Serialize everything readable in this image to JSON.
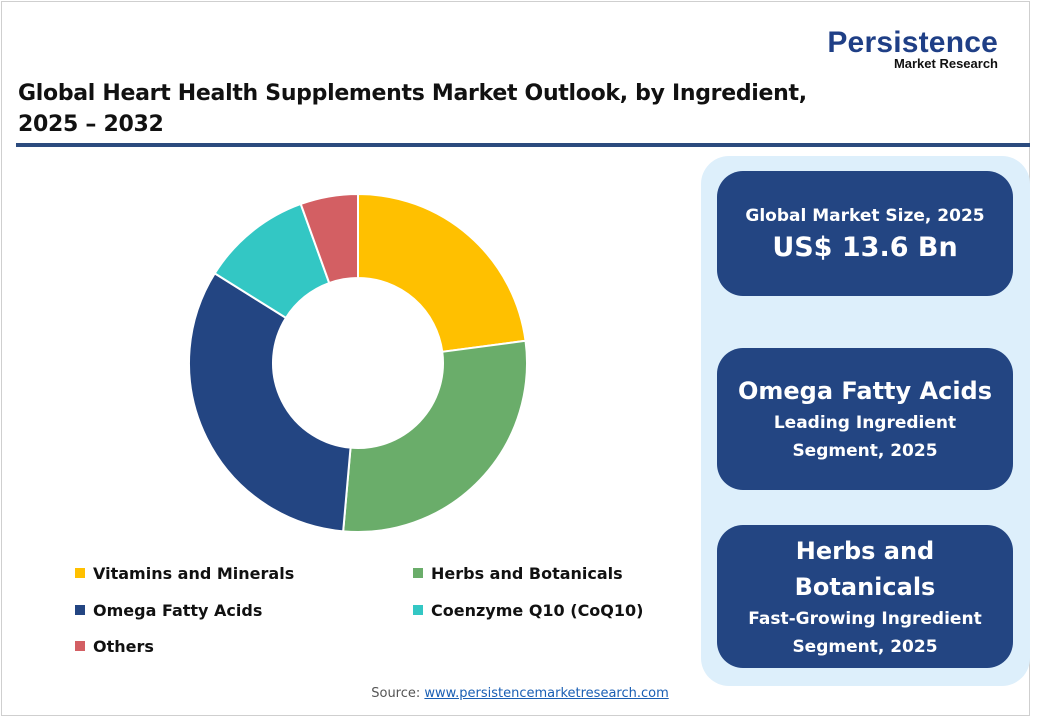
{
  "header": {
    "logo_main": "Persistence",
    "logo_sub": "Market Research",
    "title_line1": "Global Heart Health Supplements Market Outlook, by Ingredient,",
    "title_line2": "2025 – 2032"
  },
  "colors": {
    "vitamins": "#FFC000",
    "herbs": "#6AAD6A",
    "omega": "#234582",
    "coq10": "#33C7C4",
    "others": "#D35F63",
    "card_bg": "#234582",
    "panel_bg": "#DDEFFB",
    "rule": "#2B4B7E"
  },
  "chart_data": {
    "type": "pie",
    "subtype": "donut",
    "title": "Global Heart Health Supplements Market Outlook, by Ingredient, 2025 – 2032",
    "categories": [
      "Vitamins and Minerals",
      "Herbs and Botanicals",
      "Omega Fatty Acids",
      "Coenzyme Q10 (CoQ10)",
      "Others"
    ],
    "values": [
      22.9,
      28.5,
      32.5,
      10.6,
      5.5
    ],
    "unit": "% share (estimated from slice angles)",
    "colors": [
      "#FFC000",
      "#6AAD6A",
      "#234582",
      "#33C7C4",
      "#D35F63"
    ],
    "legend_position": "bottom",
    "start_angle": "12 o'clock, clockwise"
  },
  "legend": {
    "items": [
      {
        "label": "Vitamins and Minerals",
        "color": "#FFC000"
      },
      {
        "label": "Herbs and Botanicals",
        "color": "#6AAD6A"
      },
      {
        "label": "Omega Fatty Acids",
        "color": "#234582"
      },
      {
        "label": "Coenzyme Q10 (CoQ10)",
        "color": "#33C7C4"
      },
      {
        "label": "Others",
        "color": "#D35F63"
      }
    ]
  },
  "cards": {
    "market_size": {
      "label": "Global Market Size, 2025",
      "value": "US$ 13.6 Bn"
    },
    "leading": {
      "title": "Omega Fatty Acids",
      "line1": "Leading Ingredient",
      "line2": "Segment, 2025"
    },
    "fastest": {
      "title1": "Herbs and",
      "title2": "Botanicals",
      "line1": "Fast-Growing Ingredient",
      "line2": "Segment, 2025"
    }
  },
  "footer": {
    "source_label": "Source: ",
    "source_link": "www.persistencemarketresearch.com"
  }
}
